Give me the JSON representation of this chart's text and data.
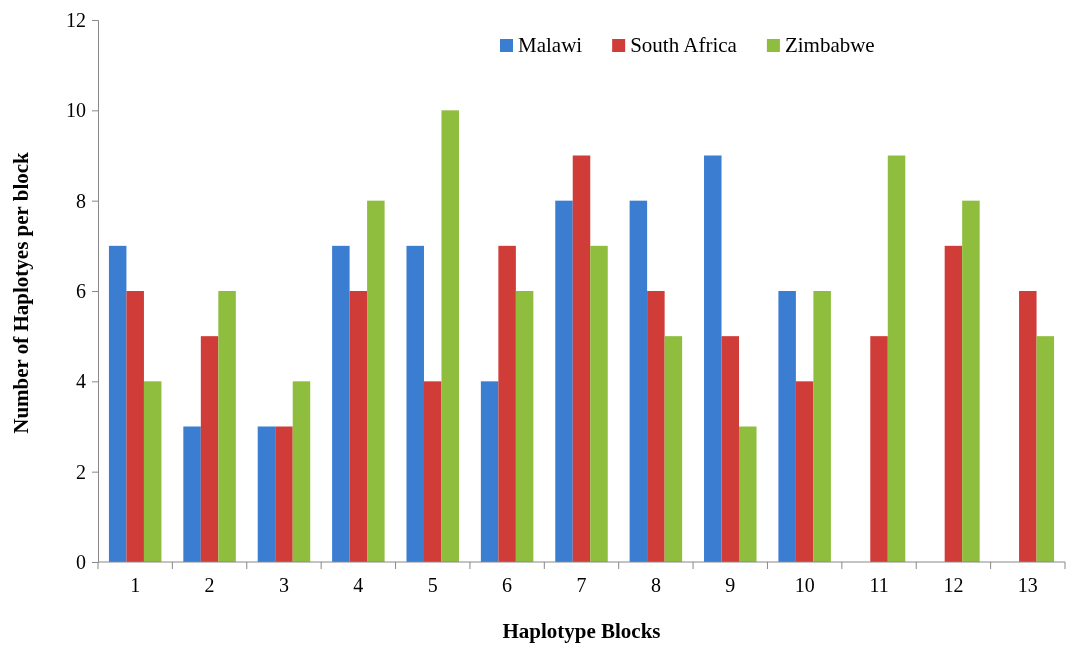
{
  "chart_data": {
    "type": "bar",
    "xlabel": "Haplotype Blocks",
    "ylabel": "Number of Haplotyes per block",
    "categories": [
      "1",
      "2",
      "3",
      "4",
      "5",
      "6",
      "7",
      "8",
      "9",
      "10",
      "11",
      "12",
      "13"
    ],
    "series": [
      {
        "name": "Malawi",
        "color": "#3b7dd0",
        "values": [
          7,
          3,
          3,
          7,
          7,
          4,
          8,
          8,
          9,
          6,
          null,
          null,
          null
        ]
      },
      {
        "name": "South Africa",
        "color": "#d03c38",
        "values": [
          6,
          5,
          3,
          6,
          4,
          7,
          9,
          6,
          5,
          4,
          5,
          7,
          6
        ]
      },
      {
        "name": "Zimbabwe",
        "color": "#8fbd3e",
        "values": [
          4,
          6,
          4,
          8,
          10,
          6,
          7,
          5,
          3,
          6,
          9,
          8,
          5
        ]
      }
    ],
    "ylim": [
      0,
      12
    ],
    "yticks": [
      0,
      2,
      4,
      6,
      8,
      10,
      12
    ],
    "grid": false,
    "legend": "top right"
  }
}
